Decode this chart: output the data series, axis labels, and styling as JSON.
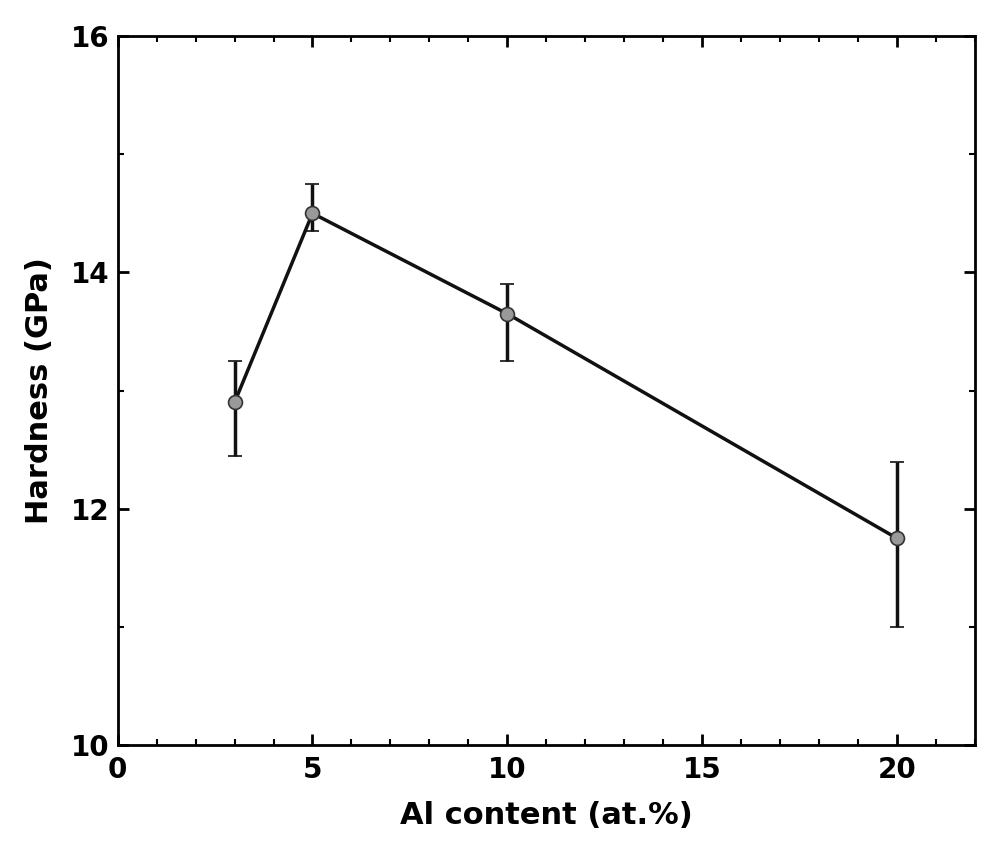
{
  "x": [
    3,
    5,
    10,
    20
  ],
  "y": [
    12.9,
    14.5,
    13.65,
    11.75
  ],
  "yerr_upper": [
    0.35,
    0.25,
    0.25,
    0.65
  ],
  "yerr_lower": [
    0.45,
    0.15,
    0.4,
    0.75
  ],
  "xlabel": "Al content (at.%)",
  "ylabel": "Hardness (GPa)",
  "xlim": [
    0,
    22
  ],
  "ylim": [
    10,
    16
  ],
  "xticks": [
    0,
    5,
    10,
    15,
    20
  ],
  "yticks": [
    10,
    12,
    14,
    16
  ],
  "line_color": "#111111",
  "marker_facecolor": "#999999",
  "marker_edge_color": "#333333",
  "marker_size": 10,
  "line_width": 2.5,
  "xlabel_fontsize": 22,
  "ylabel_fontsize": 22,
  "tick_fontsize": 20,
  "background_color": "#ffffff",
  "figure_facecolor": "#ffffff"
}
